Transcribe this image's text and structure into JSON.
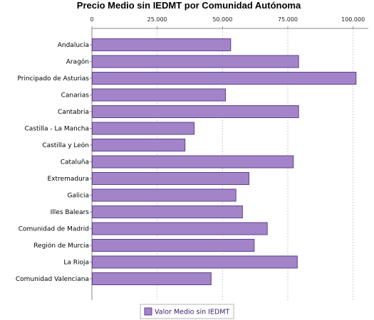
{
  "chart_data": {
    "type": "bar",
    "orientation": "horizontal",
    "title": "Precio Medio sin IEDMT por Comunidad Autónoma",
    "categories": [
      "Andalucía",
      "Aragón",
      "Principado de Asturias",
      "Canarias",
      "Cantabria",
      "Castilla - La Mancha",
      "Castilla y León",
      "Cataluña",
      "Extremadura",
      "Galicia",
      "Illes Balears",
      "Comunidad de Madrid",
      "Región de Murcia",
      "La Rioja",
      "Comunidad Valenciana"
    ],
    "series": [
      {
        "name": "Valor Medio sin IEDMT",
        "values": [
          53000,
          79000,
          101000,
          51000,
          79000,
          39000,
          35500,
          77000,
          60000,
          55000,
          57500,
          67000,
          62000,
          78500,
          45500
        ]
      }
    ],
    "xlim": [
      0,
      105000
    ],
    "xticks": [
      0,
      25000,
      50000,
      75000,
      100000
    ],
    "xtick_labels": [
      "0",
      "25.000",
      "50.000",
      "75.000",
      "100.000"
    ],
    "xaxis_position": "top",
    "grid": true,
    "legend_position": "bottom",
    "colors": {
      "bar_fill": "#a384c8",
      "bar_stroke": "#5f3f8f",
      "grid": "#cccccc"
    }
  }
}
